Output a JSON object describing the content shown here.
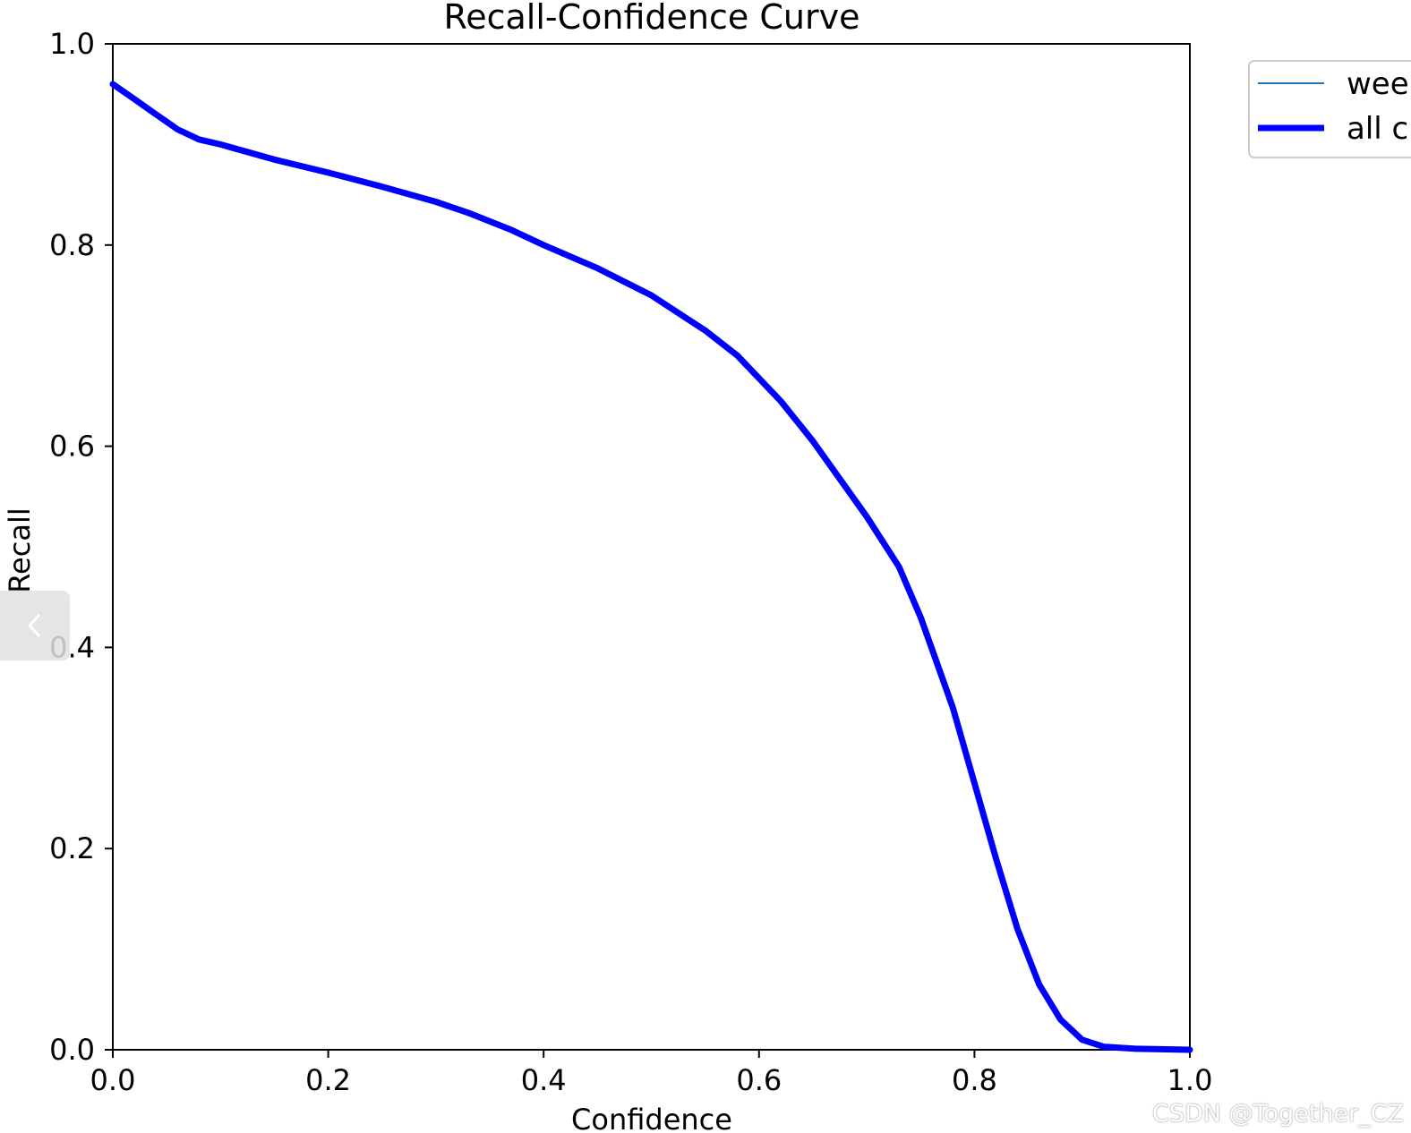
{
  "chart_data": {
    "type": "line",
    "title": "Recall-Confidence Curve",
    "xlabel": "Confidence",
    "ylabel": "Recall",
    "xlim": [
      0,
      1
    ],
    "ylim": [
      0,
      1
    ],
    "xticks": [
      "0.0",
      "0.2",
      "0.4",
      "0.6",
      "0.8",
      "1.0"
    ],
    "yticks": [
      "0.0",
      "0.2",
      "0.4",
      "0.6",
      "0.8",
      "1.0"
    ],
    "grid": false,
    "legend_position": "outside-top-right",
    "series": [
      {
        "name": "wee",
        "color": "#1f77b4",
        "linewidth": "thin",
        "x": [
          0.0,
          0.02,
          0.04,
          0.06,
          0.08,
          0.1,
          0.15,
          0.2,
          0.25,
          0.3,
          0.33,
          0.37,
          0.4,
          0.45,
          0.5,
          0.55,
          0.58,
          0.62,
          0.65,
          0.7,
          0.73,
          0.75,
          0.78,
          0.8,
          0.82,
          0.84,
          0.86,
          0.88,
          0.9,
          0.92,
          0.95,
          1.0
        ],
        "y": [
          0.96,
          0.945,
          0.93,
          0.915,
          0.905,
          0.9,
          0.885,
          0.872,
          0.858,
          0.843,
          0.832,
          0.815,
          0.8,
          0.777,
          0.75,
          0.715,
          0.69,
          0.645,
          0.605,
          0.53,
          0.48,
          0.43,
          0.34,
          0.265,
          0.19,
          0.12,
          0.065,
          0.03,
          0.01,
          0.003,
          0.001,
          0.0
        ]
      },
      {
        "name": "all c",
        "color": "#0000ff",
        "linewidth": "thick",
        "x": [
          0.0,
          0.02,
          0.04,
          0.06,
          0.08,
          0.1,
          0.15,
          0.2,
          0.25,
          0.3,
          0.33,
          0.37,
          0.4,
          0.45,
          0.5,
          0.55,
          0.58,
          0.62,
          0.65,
          0.7,
          0.73,
          0.75,
          0.78,
          0.8,
          0.82,
          0.84,
          0.86,
          0.88,
          0.9,
          0.92,
          0.95,
          1.0
        ],
        "y": [
          0.96,
          0.945,
          0.93,
          0.915,
          0.905,
          0.9,
          0.885,
          0.872,
          0.858,
          0.843,
          0.832,
          0.815,
          0.8,
          0.777,
          0.75,
          0.715,
          0.69,
          0.645,
          0.605,
          0.53,
          0.48,
          0.43,
          0.34,
          0.265,
          0.19,
          0.12,
          0.065,
          0.03,
          0.01,
          0.003,
          0.001,
          0.0
        ]
      }
    ]
  },
  "ui": {
    "watermark": "CSDN @Together_CZ",
    "prev_icon": "chevron-left-icon"
  }
}
